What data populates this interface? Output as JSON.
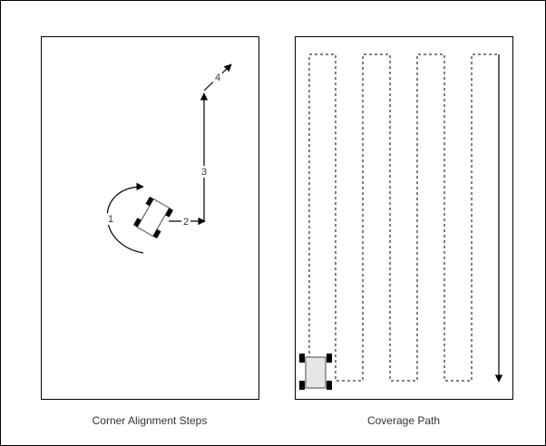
{
  "panels": {
    "left": {
      "caption": "Corner Alignment Steps"
    },
    "right": {
      "caption": "Coverage Path"
    }
  },
  "steps": [
    {
      "id": "1",
      "label": "1"
    },
    {
      "id": "2",
      "label": "2"
    },
    {
      "id": "3",
      "label": "3"
    },
    {
      "id": "4",
      "label": "4"
    }
  ],
  "colors": {
    "stroke": "#000000",
    "wheel": "#000000",
    "robot_body": "#ffffff",
    "robot_body_right": "#e6e6e6",
    "robot_outline": "#666666"
  }
}
